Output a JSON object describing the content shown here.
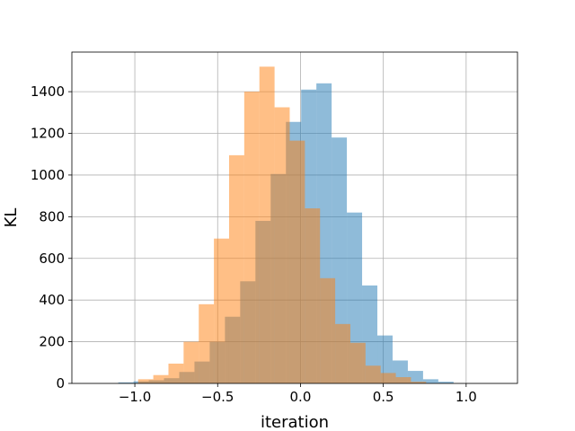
{
  "chart_data": {
    "type": "bar",
    "subtype": "overlapping-histogram",
    "xlabel": "iteration",
    "ylabel": "KL",
    "xlim": [
      -1.38,
      1.31
    ],
    "ylim": [
      0,
      1590
    ],
    "xticks": [
      -1.0,
      -0.5,
      0.0,
      0.5,
      1.0
    ],
    "xtick_labels": [
      "−1.0",
      "−0.5",
      "0.0",
      "0.5",
      "1.0"
    ],
    "yticks": [
      0,
      200,
      400,
      600,
      800,
      1000,
      1200,
      1400
    ],
    "ytick_labels": [
      "0",
      "200",
      "400",
      "600",
      "800",
      "1000",
      "1200",
      "1400"
    ],
    "grid": true,
    "alpha": 0.5,
    "series": [
      {
        "color": "#1f77b4",
        "bin_width": 0.092,
        "bins": [
          {
            "x0": -1.1,
            "value": 5
          },
          {
            "x0": -1.008,
            "value": 10
          },
          {
            "x0": -0.916,
            "value": 15
          },
          {
            "x0": -0.824,
            "value": 25
          },
          {
            "x0": -0.732,
            "value": 55
          },
          {
            "x0": -0.64,
            "value": 105
          },
          {
            "x0": -0.548,
            "value": 200
          },
          {
            "x0": -0.456,
            "value": 320
          },
          {
            "x0": -0.364,
            "value": 490
          },
          {
            "x0": -0.272,
            "value": 780
          },
          {
            "x0": -0.18,
            "value": 1005
          },
          {
            "x0": -0.088,
            "value": 1255
          },
          {
            "x0": 0.004,
            "value": 1410
          },
          {
            "x0": 0.096,
            "value": 1440
          },
          {
            "x0": 0.188,
            "value": 1180
          },
          {
            "x0": 0.28,
            "value": 820
          },
          {
            "x0": 0.372,
            "value": 470
          },
          {
            "x0": 0.464,
            "value": 230
          },
          {
            "x0": 0.556,
            "value": 110
          },
          {
            "x0": 0.648,
            "value": 60
          },
          {
            "x0": 0.74,
            "value": 20
          },
          {
            "x0": 0.832,
            "value": 8
          }
        ]
      },
      {
        "color": "#ff7f0e",
        "bin_width": 0.0915,
        "bins": [
          {
            "x0": -0.98,
            "value": 20
          },
          {
            "x0": -0.8885,
            "value": 40
          },
          {
            "x0": -0.797,
            "value": 95
          },
          {
            "x0": -0.7055,
            "value": 200
          },
          {
            "x0": -0.614,
            "value": 380
          },
          {
            "x0": -0.5225,
            "value": 695
          },
          {
            "x0": -0.431,
            "value": 1095
          },
          {
            "x0": -0.3395,
            "value": 1400
          },
          {
            "x0": -0.248,
            "value": 1520
          },
          {
            "x0": -0.1565,
            "value": 1325
          },
          {
            "x0": -0.065,
            "value": 1165
          },
          {
            "x0": 0.0265,
            "value": 840
          },
          {
            "x0": 0.118,
            "value": 505
          },
          {
            "x0": 0.2095,
            "value": 285
          },
          {
            "x0": 0.301,
            "value": 195
          },
          {
            "x0": 0.3925,
            "value": 85
          },
          {
            "x0": 0.484,
            "value": 50
          },
          {
            "x0": 0.5755,
            "value": 30
          },
          {
            "x0": 0.667,
            "value": 8
          }
        ]
      }
    ]
  }
}
